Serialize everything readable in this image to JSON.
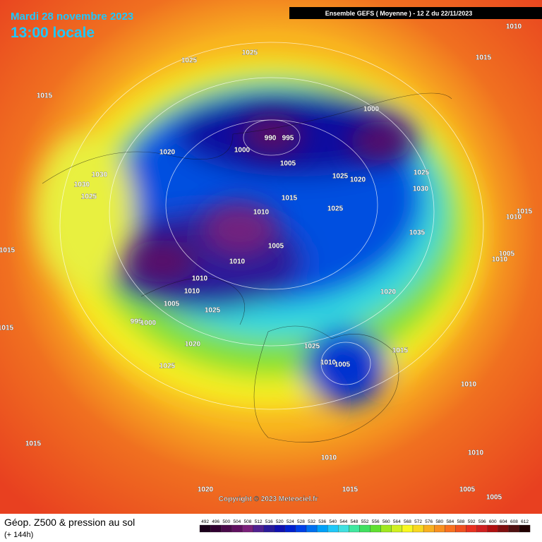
{
  "header": {
    "date": "Mardi 28 novembre 2023",
    "time": "13:00 locale",
    "model": "Ensemble GEFS  ( Moyenne )  - 12 Z du 22/11/2023"
  },
  "copyright": "Copyright © 2023 Meteociel.fr",
  "footer": {
    "title": "Géop. Z500 & pression au sol",
    "subtitle": "(+ 144h)"
  },
  "isobar_labels": [
    "1010",
    "1015",
    "1025",
    "1025",
    "1015",
    "1000",
    "990",
    "995",
    "1000",
    "1020",
    "1005",
    "1025",
    "1020",
    "1025",
    "1030",
    "1030",
    "1030",
    "1025",
    "1015",
    "1025",
    "1010",
    "1015",
    "1010",
    "1035",
    "1005",
    "1015",
    "1005",
    "1010",
    "1010",
    "1010",
    "1010",
    "1020",
    "1005",
    "1025",
    "995",
    "1000",
    "1015",
    "1020",
    "1025",
    "1015",
    "1010",
    "1005",
    "1025",
    "1010",
    "1015",
    "1010",
    "1010",
    "1020",
    "1005",
    "1015",
    "1005"
  ],
  "legend": {
    "values": [
      492,
      496,
      500,
      504,
      508,
      512,
      516,
      520,
      524,
      528,
      532,
      536,
      540,
      544,
      548,
      552,
      556,
      560,
      564,
      568,
      572,
      576,
      580,
      584,
      588,
      592,
      596,
      600,
      604,
      608,
      612
    ],
    "colors": [
      "#1a001a",
      "#300030",
      "#4a0a4a",
      "#601060",
      "#7a207a",
      "#502090",
      "#2a1a9a",
      "#1010b0",
      "#0020d0",
      "#0040e8",
      "#0070f0",
      "#00a0f8",
      "#20c8f8",
      "#40e0e0",
      "#40e8a0",
      "#40e060",
      "#60e030",
      "#a0e820",
      "#d0f020",
      "#f8f820",
      "#f8d820",
      "#f8b020",
      "#f89020",
      "#f87020",
      "#f05020",
      "#e83020",
      "#d02020",
      "#b01010",
      "#801010",
      "#501010",
      "#200000"
    ]
  }
}
